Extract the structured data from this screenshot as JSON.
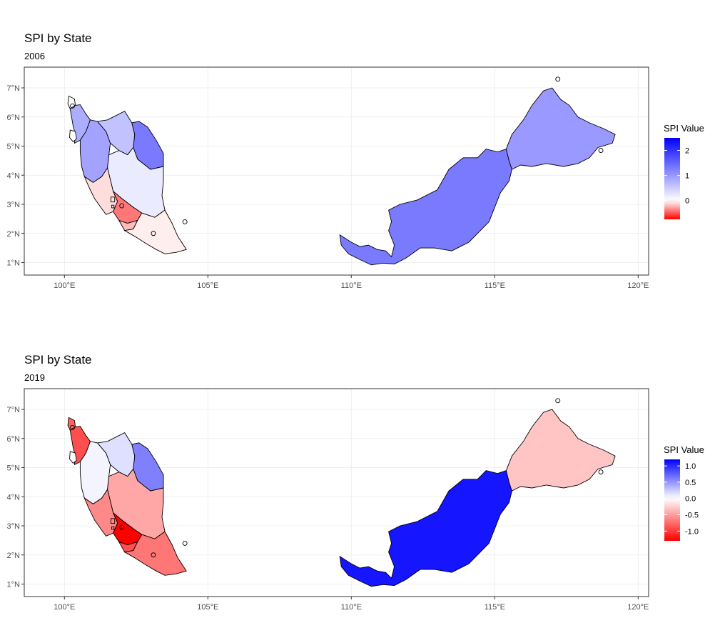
{
  "panels": [
    {
      "title": "SPI by State",
      "subtitle": "2006",
      "legend_title": "SPI Value",
      "legend_min": -0.75,
      "legend_max": 2.5,
      "legend_ticks": [
        {
          "value": 2,
          "label": "2"
        },
        {
          "value": 1,
          "label": "1"
        },
        {
          "value": 0,
          "label": "0"
        }
      ],
      "states": {
        "perlis": 0.0,
        "kedah": 0.8,
        "penang": 0.0,
        "perak": 0.9,
        "kelantan": 0.6,
        "terengganu": 1.3,
        "pahang": 0.2,
        "selangor": -0.1,
        "kl": -0.1,
        "putrajaya": -0.1,
        "negeri_sembilan": -0.4,
        "melaka": -0.2,
        "johor": -0.05,
        "sarawak": 1.3,
        "sabah": 1.0
      }
    },
    {
      "title": "SPI by State",
      "subtitle": "2019",
      "legend_title": "SPI Value",
      "legend_min": -1.3,
      "legend_max": 1.2,
      "legend_ticks": [
        {
          "value": 1.0,
          "label": "1.0"
        },
        {
          "value": 0.5,
          "label": "0.5"
        },
        {
          "value": 0.0,
          "label": "0.0"
        },
        {
          "value": -0.5,
          "label": "-0.5"
        },
        {
          "value": -1.0,
          "label": "-1.0"
        }
      ],
      "states": {
        "perlis": -0.8,
        "kedah": -0.9,
        "penang": 0.0,
        "perak": 0.05,
        "kelantan": 0.15,
        "terengganu": 0.6,
        "pahang": -0.45,
        "selangor": -0.6,
        "kl": -0.6,
        "putrajaya": -0.6,
        "negeri_sembilan": -1.3,
        "melaka": -0.9,
        "johor": -0.7,
        "sarawak": 1.1,
        "sabah": -0.3
      }
    }
  ],
  "x_ticks": [
    {
      "value": 100,
      "label": "100°E"
    },
    {
      "value": 105,
      "label": "105°E"
    },
    {
      "value": 110,
      "label": "110°E"
    },
    {
      "value": 115,
      "label": "115°E"
    },
    {
      "value": 120,
      "label": "120°E"
    }
  ],
  "y_ticks": [
    {
      "value": 1,
      "label": "1°N"
    },
    {
      "value": 2,
      "label": "2°N"
    },
    {
      "value": 3,
      "label": "3°N"
    },
    {
      "value": 4,
      "label": "4°N"
    },
    {
      "value": 5,
      "label": "5°N"
    },
    {
      "value": 6,
      "label": "6°N"
    },
    {
      "value": 7,
      "label": "7°N"
    }
  ],
  "colors": {
    "low": "#ff0000",
    "mid": "#ffffff",
    "high": "#0000ff",
    "grid": "#ebebeb",
    "border": "#333333"
  }
}
